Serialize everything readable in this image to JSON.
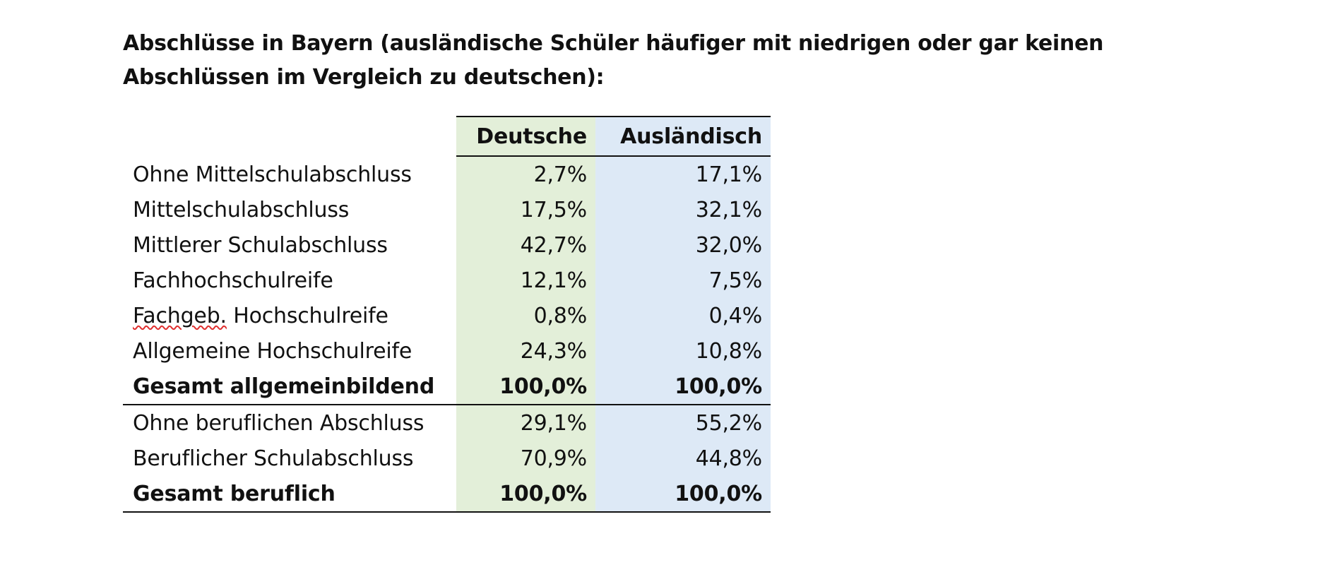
{
  "title": "Abschlüsse in Bayern (ausländische Schüler häufiger mit niedrigen oder gar keinen Abschlüssen im Vergleich zu deutschen):",
  "table": {
    "headers": {
      "de": "Deutsche",
      "au": "Ausländisch"
    },
    "general": [
      {
        "label": "Ohne Mittelschulabschluss",
        "de": "2,7%",
        "au": "17,1%"
      },
      {
        "label": "Mittelschulabschluss",
        "de": "17,5%",
        "au": "32,1%"
      },
      {
        "label": "Mittlerer Schulabschluss",
        "de": "42,7%",
        "au": "32,0%"
      },
      {
        "label": "Fachhochschulreife",
        "de": "12,1%",
        "au": "7,5%"
      },
      {
        "label_word1": "Fachgeb.",
        "label_word2": " Hochschulreife",
        "de": "0,8%",
        "au": "0,4%"
      },
      {
        "label": "Allgemeine Hochschulreife",
        "de": "24,3%",
        "au": "10,8%"
      }
    ],
    "general_total": {
      "label": "Gesamt allgemeinbildend",
      "de": "100,0%",
      "au": "100,0%"
    },
    "vocational": [
      {
        "label": "Ohne beruflichen Abschluss",
        "de": "29,1%",
        "au": "55,2%"
      },
      {
        "label": "Beruflicher Schulabschluss",
        "de": "70,9%",
        "au": "44,8%"
      }
    ],
    "vocational_total": {
      "label": "Gesamt beruflich",
      "de": "100,0%",
      "au": "100,0%"
    }
  },
  "colors": {
    "deutsche_column": "#e3efd9",
    "auslaendisch_column": "#dde9f6",
    "spellcheck_underline": "#e03030"
  }
}
